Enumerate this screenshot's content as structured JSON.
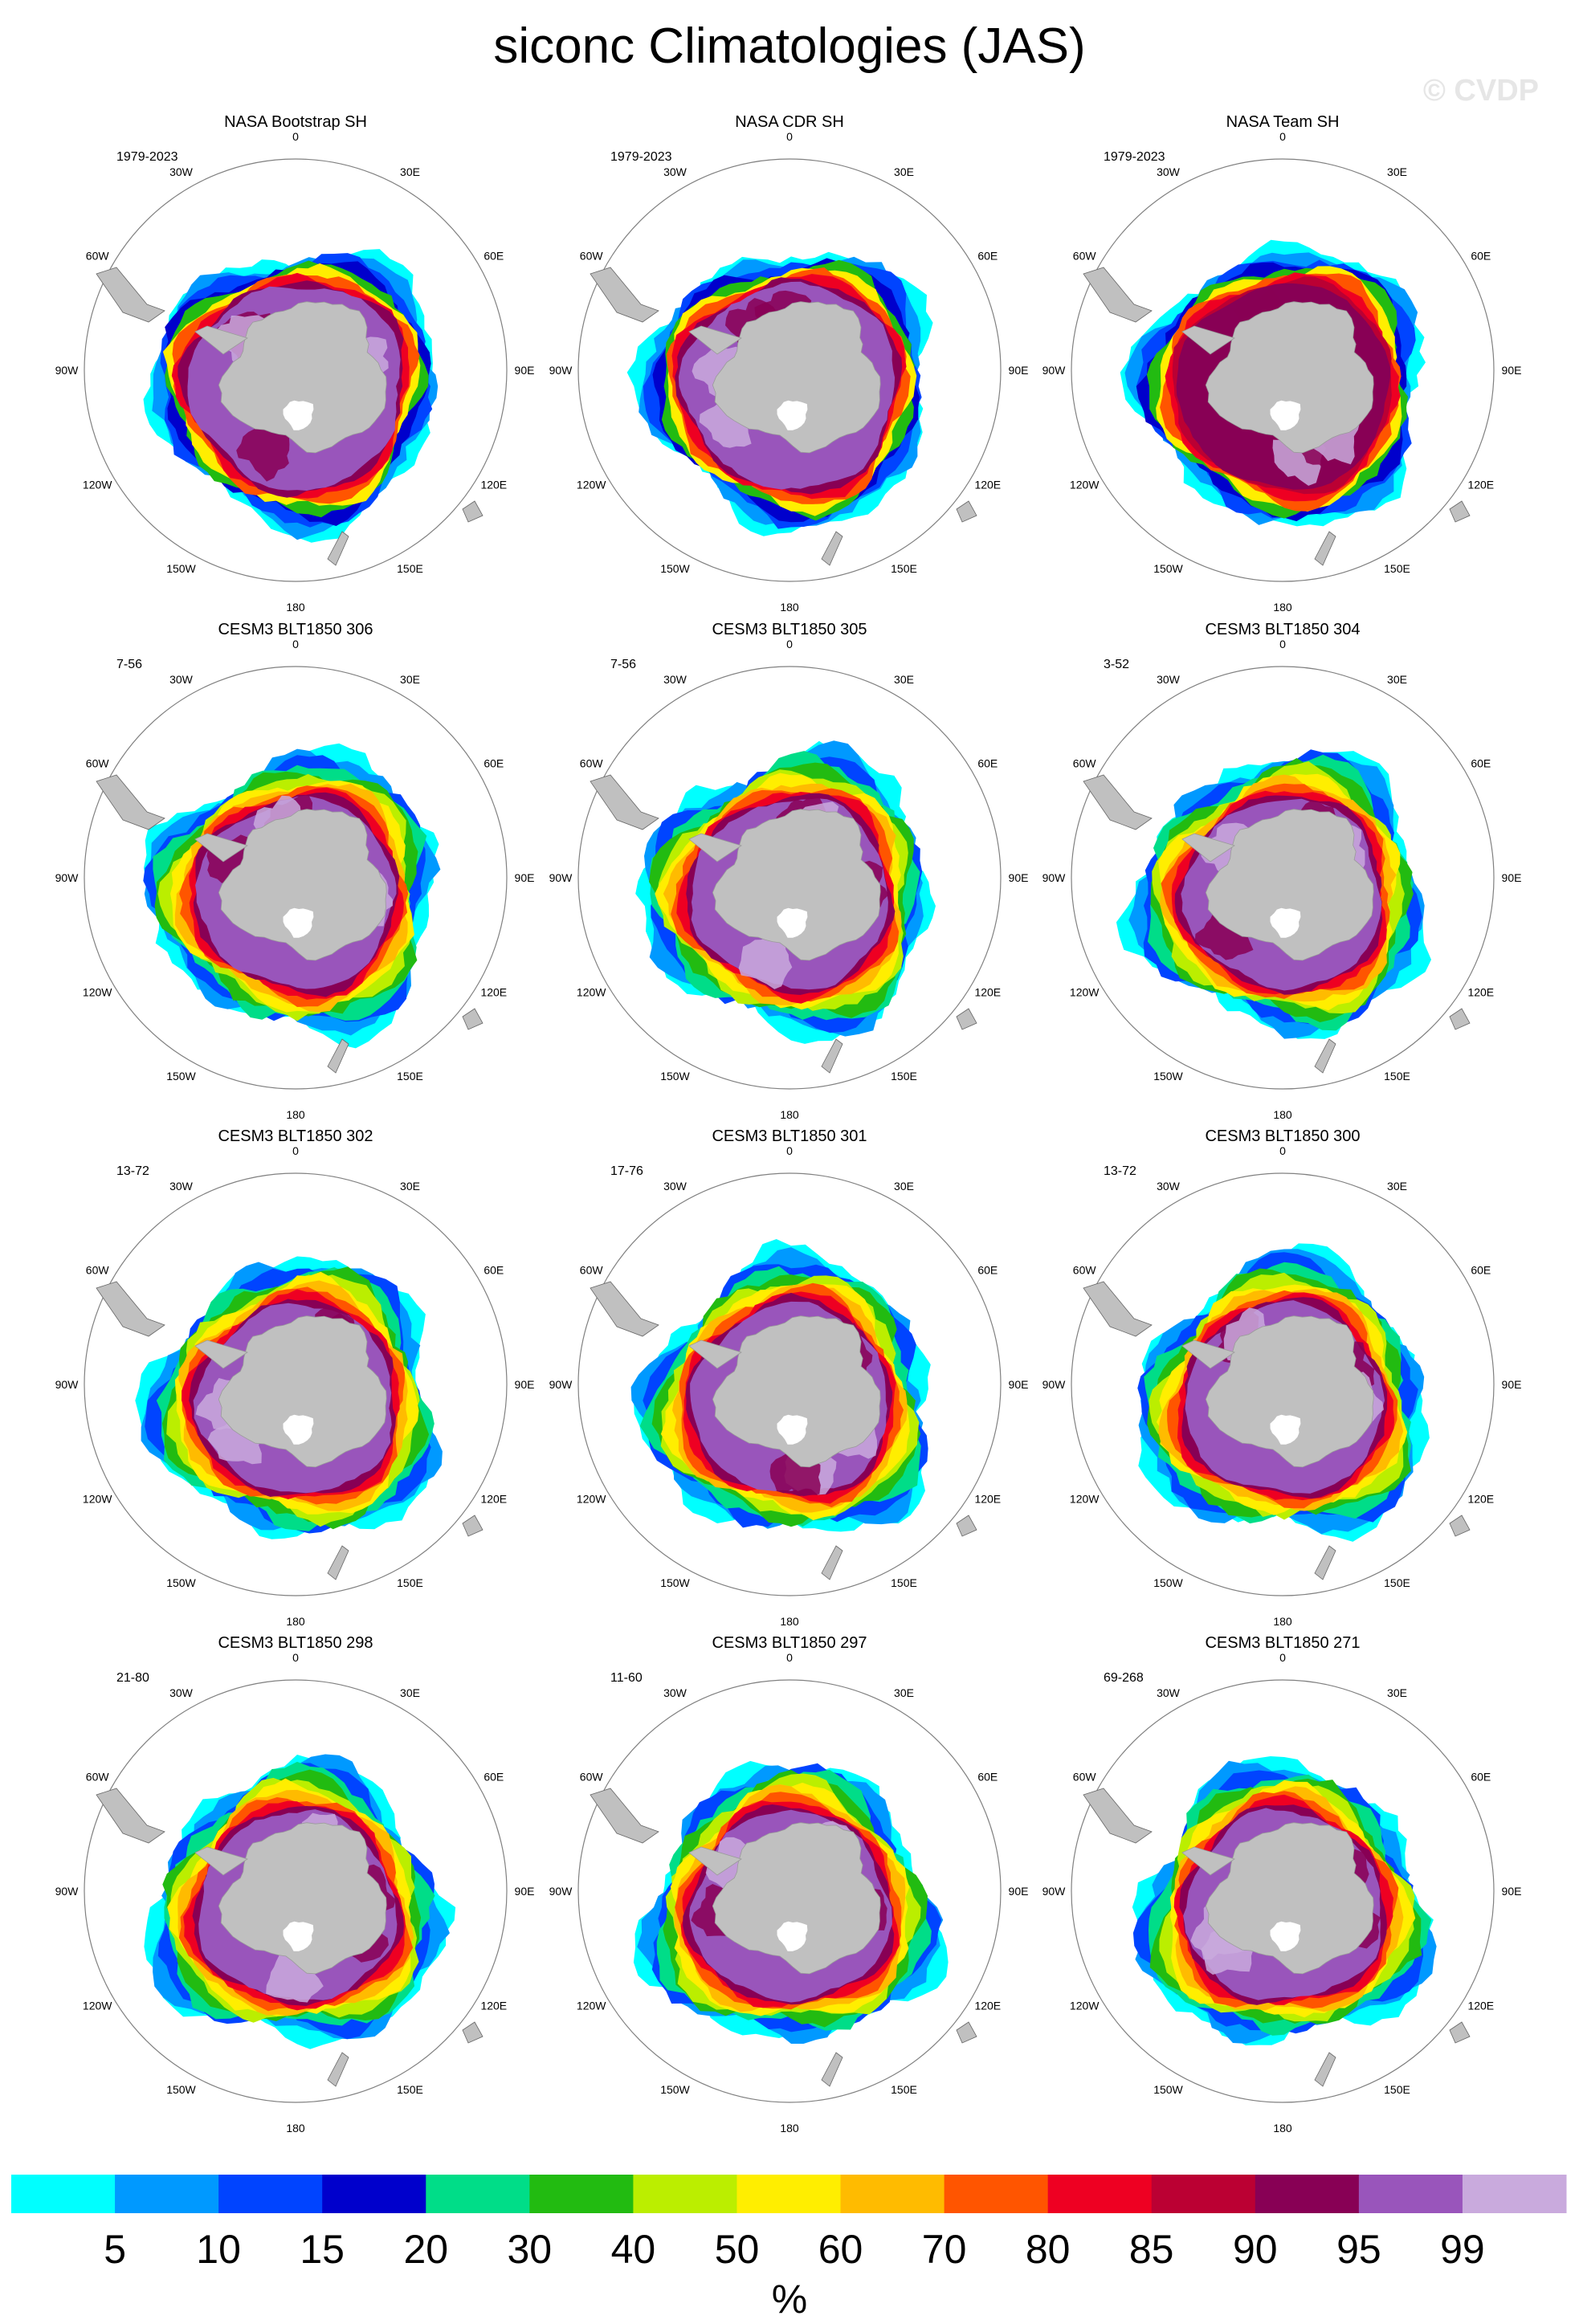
{
  "title": "siconc Climatologies (JAS)",
  "watermark": "© CVDP",
  "unit_label": "%",
  "longitude_labels": [
    "0",
    "30E",
    "60E",
    "90E",
    "120E",
    "150E",
    "180",
    "150W",
    "120W",
    "90W",
    "60W",
    "30W"
  ],
  "panels": [
    {
      "title": "NASA Bootstrap SH",
      "years": "1979-2023",
      "style": "bootstrap"
    },
    {
      "title": "NASA CDR SH",
      "years": "1979-2023",
      "style": "cdr"
    },
    {
      "title": "NASA Team SH",
      "years": "1979-2023",
      "style": "team"
    },
    {
      "title": "CESM3 BLT1850 306",
      "years": "7-56",
      "style": "model"
    },
    {
      "title": "CESM3 BLT1850 305",
      "years": "7-56",
      "style": "model"
    },
    {
      "title": "CESM3 BLT1850 304",
      "years": "3-52",
      "style": "model"
    },
    {
      "title": "CESM3 BLT1850 302",
      "years": "13-72",
      "style": "model"
    },
    {
      "title": "CESM3 BLT1850 301",
      "years": "17-76",
      "style": "model"
    },
    {
      "title": "CESM3 BLT1850 300",
      "years": "13-72",
      "style": "model"
    },
    {
      "title": "CESM3 BLT1850 298",
      "years": "21-80",
      "style": "model"
    },
    {
      "title": "CESM3 BLT1850 297",
      "years": "11-60",
      "style": "model"
    },
    {
      "title": "CESM3 BLT1850 271",
      "years": "69-268",
      "style": "model"
    }
  ],
  "colorbar": {
    "colors": [
      "#00ffff",
      "#0099ff",
      "#0044ff",
      "#0000cc",
      "#00dd88",
      "#22bb11",
      "#bbee00",
      "#ffee00",
      "#ffbb00",
      "#ff5500",
      "#ee0022",
      "#bb0033",
      "#880055",
      "#9955bb",
      "#c9aadd"
    ],
    "labels": [
      "5",
      "10",
      "15",
      "20",
      "30",
      "40",
      "50",
      "60",
      "70",
      "80",
      "85",
      "90",
      "95",
      "99"
    ]
  },
  "colors": {
    "land": "#c0c0c0",
    "boundary": "#888888",
    "background": "#ffffff"
  }
}
